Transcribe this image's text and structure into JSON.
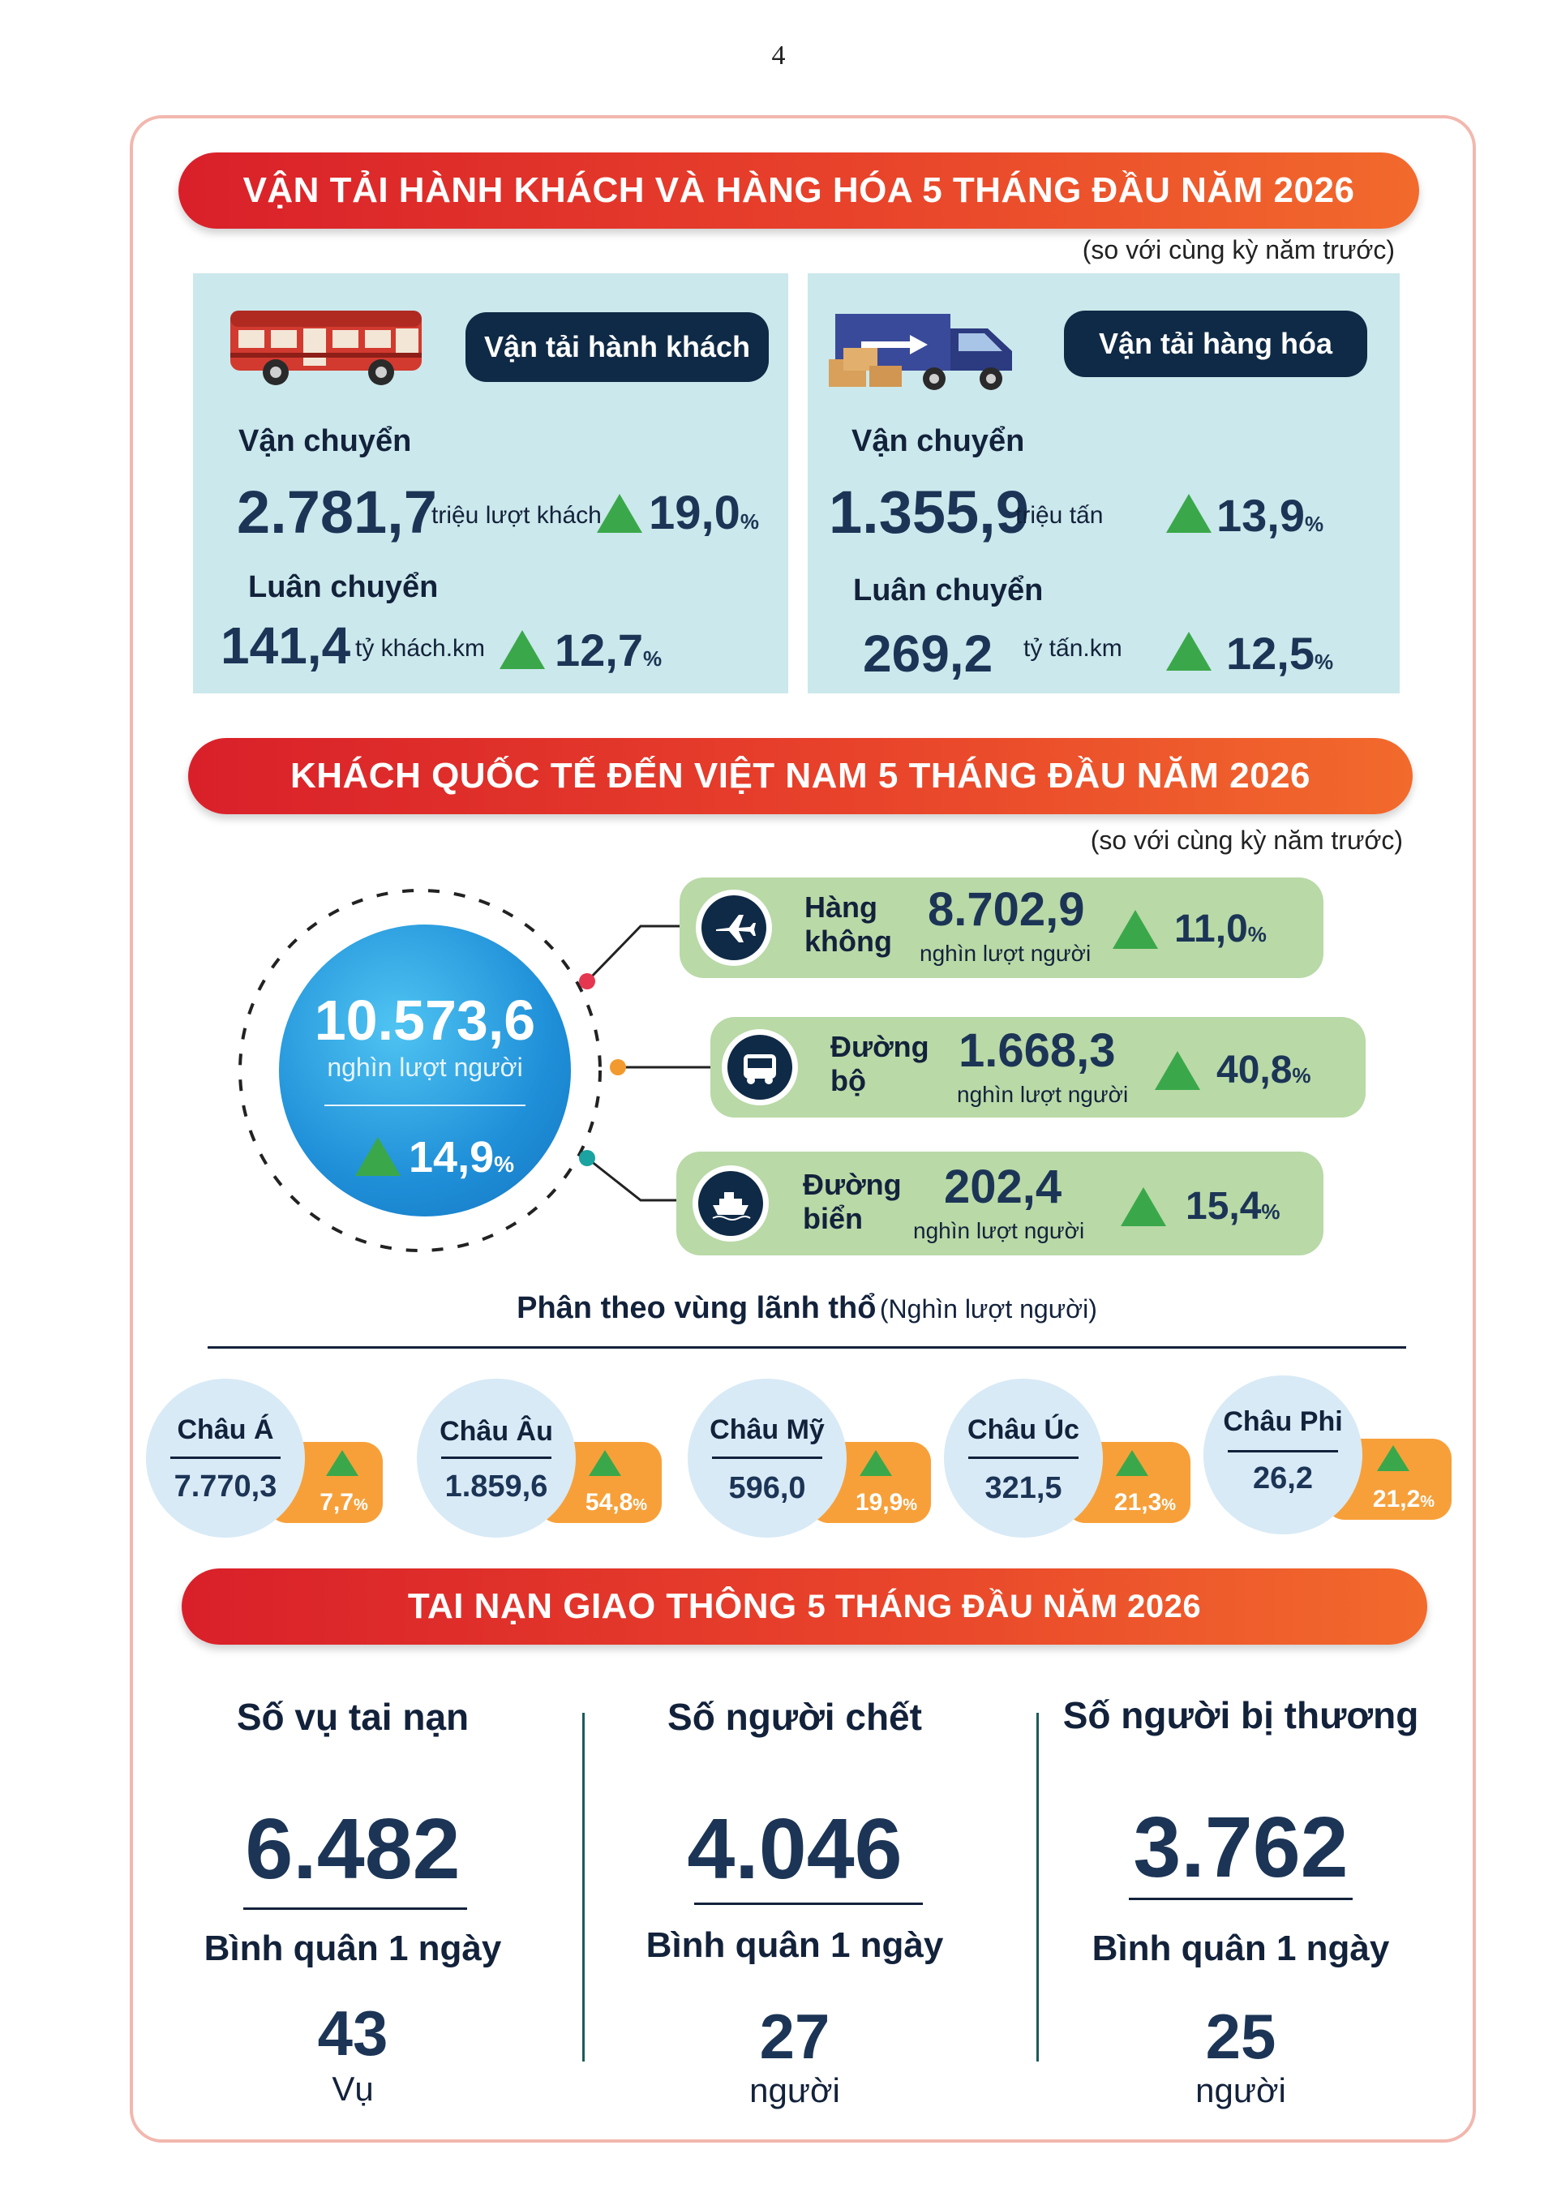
{
  "page_number": "4",
  "section1": {
    "title": "VẬN TẢI HÀNH KHÁCH VÀ HÀNG HÓA 5 THÁNG ĐẦU NĂM 2026",
    "note": "(so với cùng kỳ năm trước)",
    "passenger": {
      "label": "Vận tải hành khách",
      "transport_label": "Vận chuyển",
      "transport_value": "2.781,7",
      "transport_unit": "triệu lượt khách",
      "transport_pct": "19,0",
      "rotation_label": "Luân chuyển",
      "rotation_value": "141,4",
      "rotation_unit": "tỷ khách.km",
      "rotation_pct": "12,7"
    },
    "freight": {
      "label": "Vận tải hàng hóa",
      "transport_label": "Vận chuyển",
      "transport_value": "1.355,9",
      "transport_unit": "triệu tấn",
      "transport_pct": "13,9",
      "rotation_label": "Luân chuyển",
      "rotation_value": "269,2",
      "rotation_unit": "tỷ tấn.km",
      "rotation_pct": "12,5"
    },
    "pct_sign": "%"
  },
  "section2": {
    "title": "KHÁCH QUỐC TẾ ĐẾN VIỆT NAM 5 THÁNG ĐẦU NĂM 2026",
    "note": "(so với cùng kỳ năm trước)",
    "total": {
      "value": "10.573,6",
      "unit": "nghìn lượt người",
      "pct": "14,9"
    },
    "modes": [
      {
        "name_line1": "Hàng",
        "name_line2": "không",
        "value": "8.702,9",
        "unit": "nghìn lượt người",
        "pct": "11,0",
        "icon": "airplane-icon"
      },
      {
        "name_line1": "Đường",
        "name_line2": "bộ",
        "value": "1.668,3",
        "unit": "nghìn lượt người",
        "pct": "40,8",
        "icon": "bus-icon"
      },
      {
        "name_line1": "Đường",
        "name_line2": "biển",
        "value": "202,4",
        "unit": "nghìn lượt người",
        "pct": "15,4",
        "icon": "ship-icon"
      }
    ],
    "region_heading": "Phân theo vùng lãnh thổ",
    "region_heading_unit": "(Nghìn lượt người)",
    "regions": [
      {
        "name": "Châu Á",
        "value": "7.770,3",
        "pct": "7,7"
      },
      {
        "name": "Châu Âu",
        "value": "1.859,6",
        "pct": "54,8"
      },
      {
        "name": "Châu Mỹ",
        "value": "596,0",
        "pct": "19,9"
      },
      {
        "name": "Châu Úc",
        "value": "321,5",
        "pct": "21,3"
      },
      {
        "name": "Châu Phi",
        "value": "26,2",
        "pct": "21,2"
      }
    ],
    "pct_sign": "%"
  },
  "section3": {
    "title_bold": "TAI NẠN GIAO THÔNG",
    "title_rest": "5 THÁNG ĐẦU NĂM 2026",
    "items": [
      {
        "title": "Số vụ tai nạn",
        "value": "6.482",
        "avg_label": "Bình quân 1 ngày",
        "avg_value": "43",
        "avg_unit": "Vụ"
      },
      {
        "title": "Số người chết",
        "value": "4.046",
        "avg_label": "Bình quân 1 ngày",
        "avg_value": "27",
        "avg_unit": "người"
      },
      {
        "title": "Số người bị thương",
        "value": "3.762",
        "avg_label": "Bình quân 1 ngày",
        "avg_value": "25",
        "avg_unit": "người"
      }
    ]
  },
  "colors": {
    "banner_start": "#d9202a",
    "banner_end": "#f26a2c",
    "panel": "#cbe8ec",
    "navy": "#0f2a46",
    "green_up": "#3aa84a",
    "mode_card": "#b9d9a7",
    "region_pill": "#f7a03a"
  }
}
